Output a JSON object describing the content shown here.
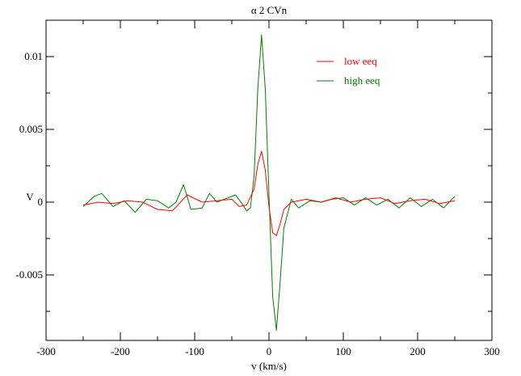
{
  "chart_data": {
    "type": "line",
    "title": "α 2 CVn",
    "xlabel": "v (km/s)",
    "ylabel": "V",
    "xlim": [
      -300,
      300
    ],
    "ylim": [
      -0.0095,
      0.0125
    ],
    "xticks": [
      -300,
      -200,
      -100,
      0,
      100,
      200,
      300
    ],
    "xtick_labels": [
      "-300",
      "-200",
      "-100",
      "0",
      "100",
      "200",
      "300"
    ],
    "yticks": [
      -0.005,
      0,
      0.005,
      0.01
    ],
    "ytick_labels": [
      "-0.005",
      "0",
      "0.005",
      "0.01"
    ],
    "grid": false,
    "legend_position": "top-right",
    "series": [
      {
        "name": "low eeq",
        "color": "#ff0000",
        "x": [
          -250,
          -230,
          -210,
          -190,
          -170,
          -150,
          -130,
          -110,
          -90,
          -70,
          -50,
          -40,
          -30,
          -20,
          -15,
          -10,
          -5,
          0,
          5,
          10,
          15,
          20,
          30,
          40,
          50,
          70,
          90,
          110,
          130,
          150,
          170,
          190,
          210,
          230,
          250
        ],
        "y": [
          -0.0002,
          0.0,
          -0.0001,
          0.0001,
          0.0,
          -0.0005,
          -0.0006,
          0.0005,
          0.0,
          0.0001,
          0.0002,
          -0.0003,
          -0.0002,
          0.0009,
          0.0026,
          0.0035,
          0.0022,
          -0.0003,
          -0.0021,
          -0.0023,
          -0.0015,
          -0.0005,
          0.0,
          0.0001,
          0.0002,
          0.0,
          0.0003,
          0.0,
          0.0002,
          0.0003,
          -0.0001,
          0.0001,
          0.0002,
          -0.0001,
          0.0001
        ]
      },
      {
        "name": "high eeq",
        "color": "#008000",
        "x": [
          -250,
          -235,
          -225,
          -210,
          -195,
          -180,
          -165,
          -150,
          -135,
          -125,
          -115,
          -105,
          -90,
          -80,
          -70,
          -55,
          -45,
          -35,
          -30,
          -25,
          -20,
          -15,
          -10,
          -5,
          0,
          5,
          10,
          15,
          20,
          25,
          30,
          40,
          55,
          70,
          85,
          100,
          115,
          130,
          145,
          160,
          175,
          190,
          205,
          220,
          235,
          250
        ],
        "y": [
          -0.0003,
          0.0004,
          0.0006,
          -0.0003,
          0.0001,
          -0.0007,
          0.0002,
          0.0001,
          -0.0004,
          0.0,
          0.0012,
          -0.0005,
          -0.0004,
          0.0006,
          0.0,
          0.0003,
          0.0005,
          -0.0002,
          -0.0006,
          -0.0004,
          0.0018,
          0.0078,
          0.0115,
          0.0078,
          0.0005,
          -0.0065,
          -0.0088,
          -0.0055,
          -0.0018,
          -0.0008,
          0.0002,
          -0.0004,
          0.0001,
          0.0,
          0.0002,
          0.0003,
          -0.0002,
          0.0003,
          -0.0002,
          0.0002,
          -0.0004,
          0.0003,
          -0.0003,
          0.0002,
          -0.0004,
          0.0004
        ]
      }
    ]
  }
}
